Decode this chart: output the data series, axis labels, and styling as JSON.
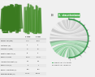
{
  "photo_bg": "#1a1a1a",
  "plant_color1": "#3a7a2a",
  "plant_color2": "#4a8a3a",
  "label_a": "(A)",
  "label_b": "(B)",
  "species1": "S. stauntoniana",
  "species2": "S. lepidophylla",
  "chord_title": "S. stauntoniana",
  "chord_title_bg": "#4caf50",
  "chord_outer_color": "#3a9a50",
  "chord_colors_green": [
    "#3a9a50",
    "#5ab870",
    "#7acc8a",
    "#a0ddb0"
  ],
  "chord_colors_gray": [
    "#aaaaaa",
    "#bbbbbb",
    "#cccccc",
    "#dddddd"
  ],
  "legend_labels": [
    "Duplicated in S. stauntoniana",
    "Duplicated in S. lepidophylla"
  ],
  "legend_colors": [
    "#5ab870",
    "#aaaaaa"
  ],
  "table_bg_alt": "#e8e8e8",
  "table_header_cols": [
    "",
    "S. stauntoniana",
    "S. lepidophylla"
  ],
  "table_rows": [
    [
      "Genome size (Mbp)",
      "1,706",
      "4,308"
    ],
    [
      "Contig N50 (kb)",
      "40",
      "65"
    ],
    [
      "Scaffold N50 (Mbp)",
      "1.2",
      "2.7"
    ],
    [
      "Repetitive elements (%)",
      "72",
      "68"
    ],
    [
      "Number of genes",
      "26,070",
      "22,228"
    ],
    [
      "Average intron length (bp)",
      "340",
      "360"
    ],
    [
      "Number of Ns (%)",
      "5",
      "7"
    ],
    [
      "BUSCO completeness (%)",
      "78.5",
      "91.2"
    ],
    [
      "Gene average size (bp)",
      "1,743.3",
      "3,354.4"
    ]
  ],
  "n_green_chords": 18,
  "n_gray_chords": 20,
  "fig_bg": "#f0f0f0"
}
